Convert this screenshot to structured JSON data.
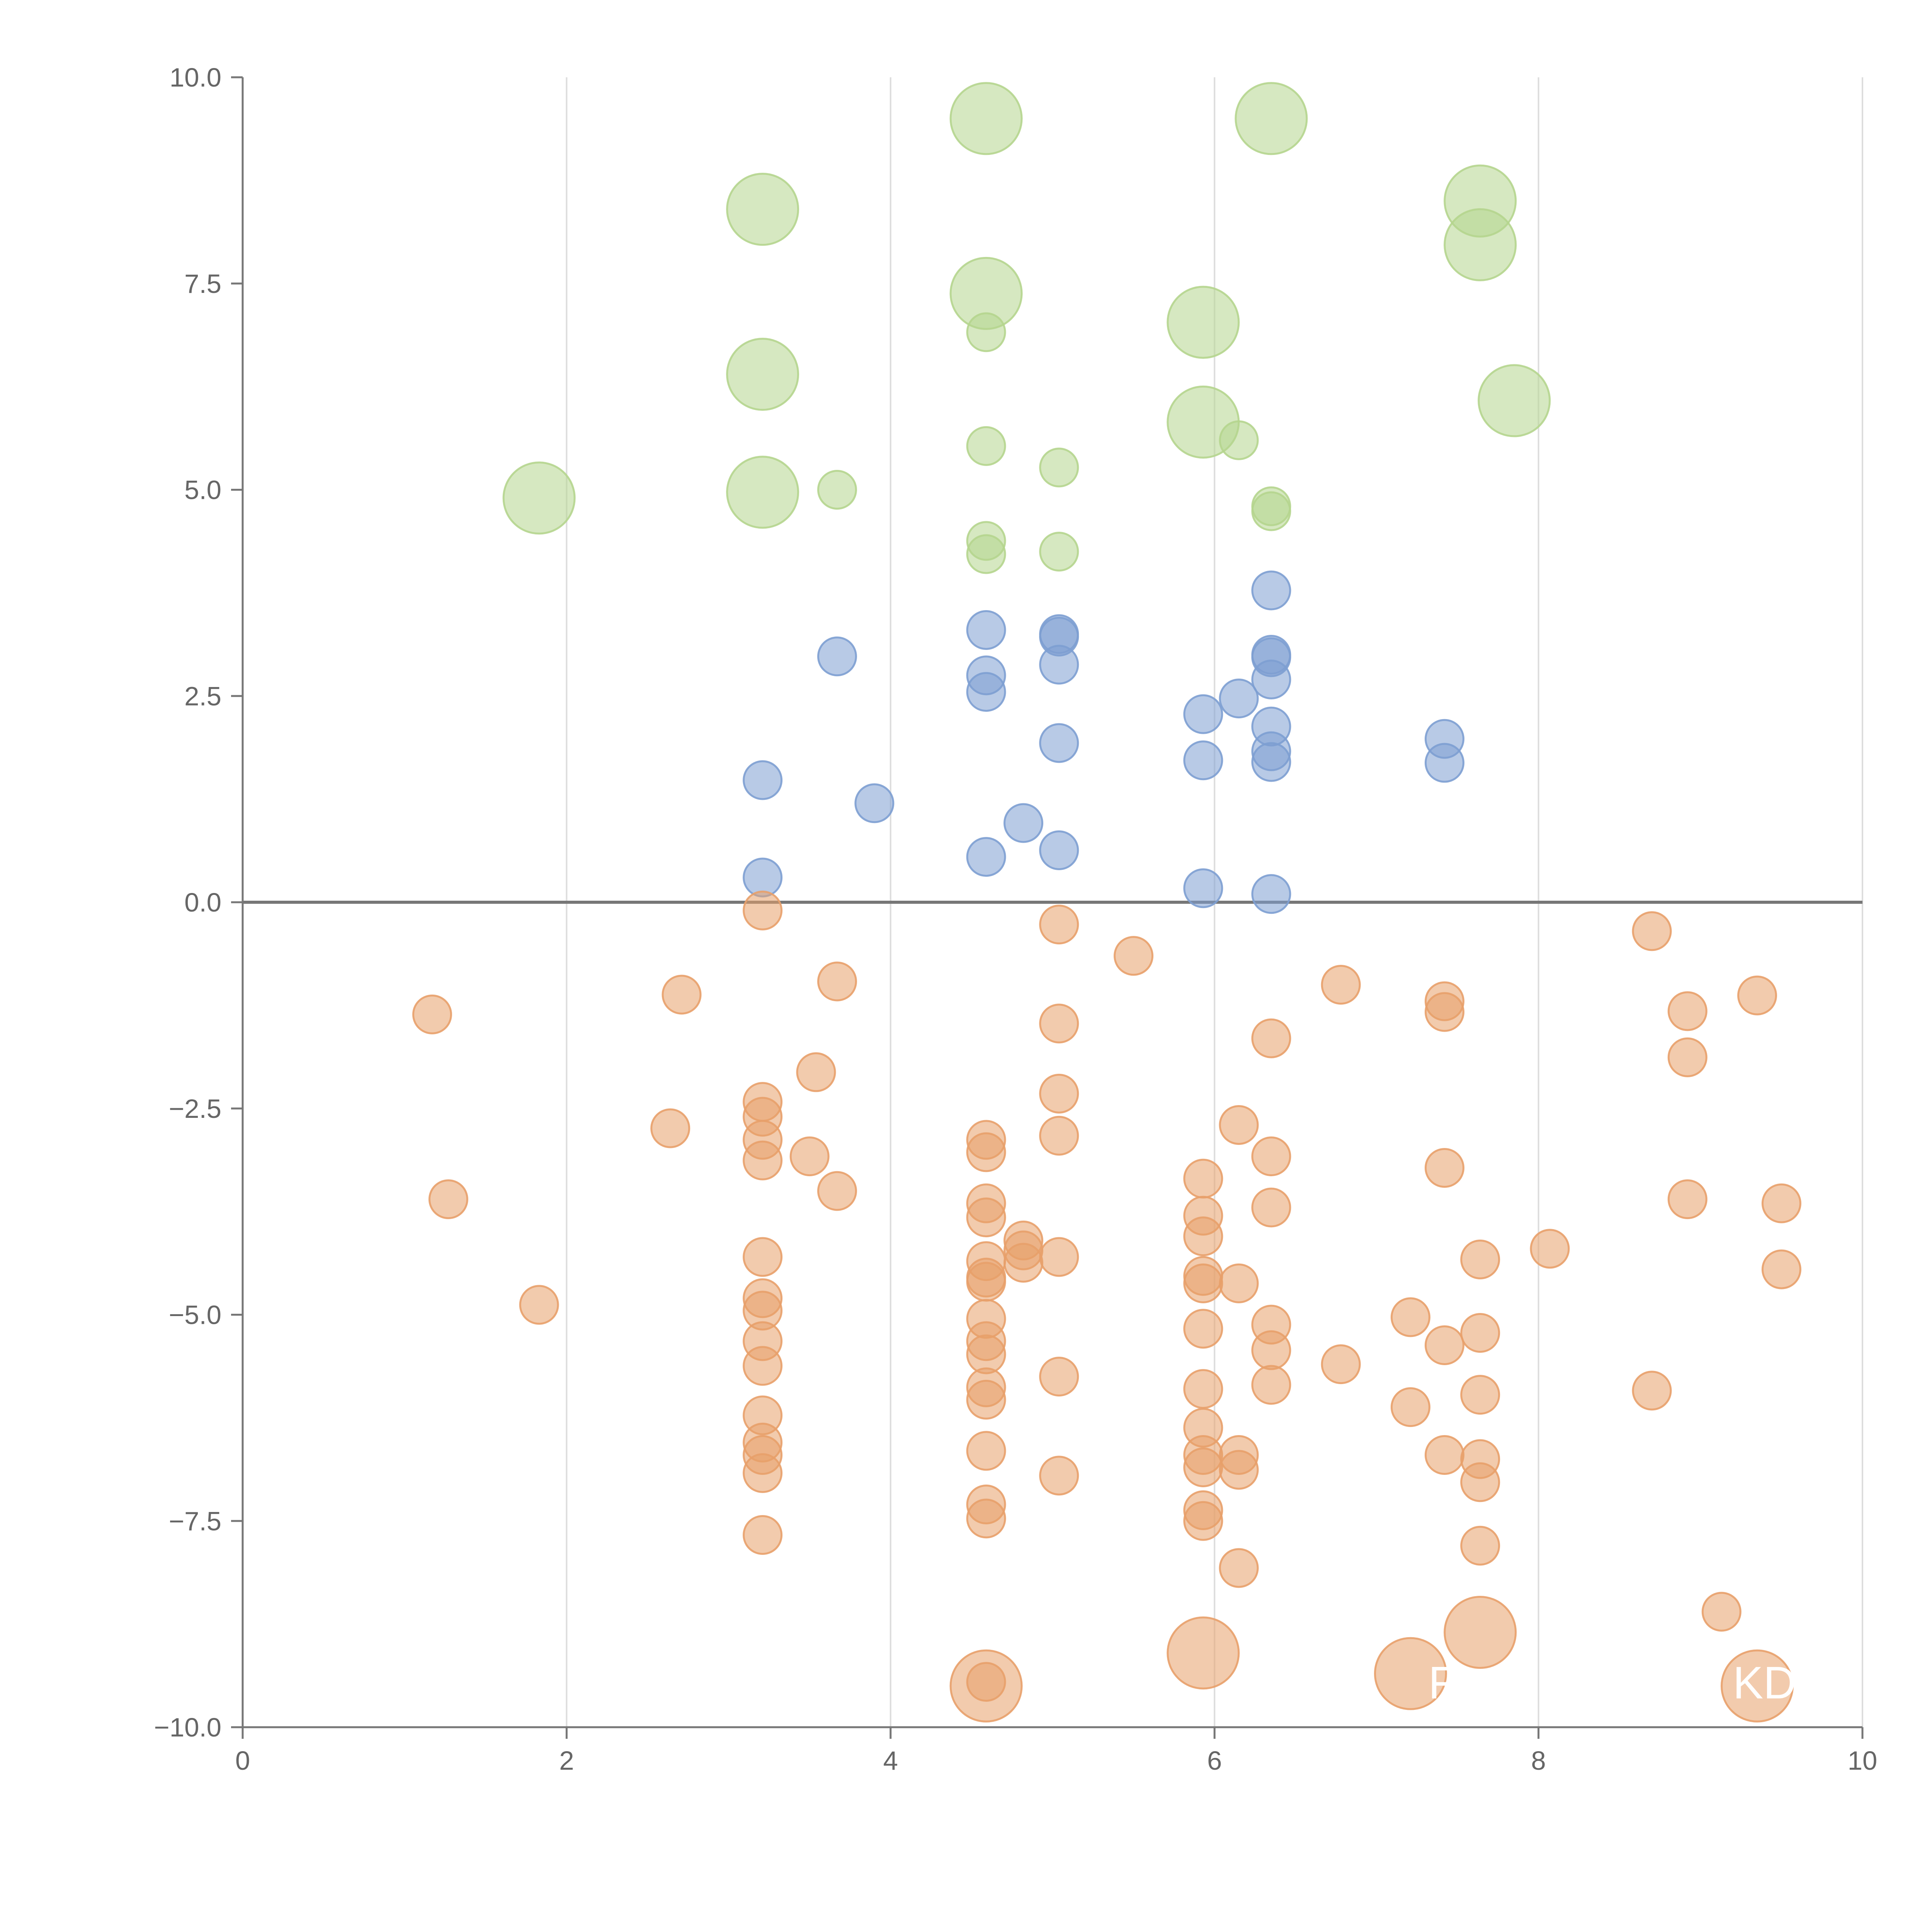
{
  "chart_data": {
    "type": "scatter",
    "title": "",
    "xlabel": "",
    "ylabel": "",
    "xlim": [
      0,
      10
    ],
    "ylim": [
      -10,
      10
    ],
    "x_ticks": [
      "0",
      "2",
      "4",
      "6",
      "8",
      "10"
    ],
    "y_ticks": [
      "10.0",
      "7.5",
      "5.0",
      "2.5",
      "0.0",
      "−2.5",
      "−5.0",
      "−7.5",
      "−10.0"
    ],
    "x_tick_values": [
      0,
      2,
      4,
      6,
      8,
      10
    ],
    "y_tick_values": [
      10,
      7.5,
      5,
      2.5,
      0,
      -2.5,
      -5,
      -7.5,
      -10
    ],
    "grid": "vertical",
    "zero_line": true,
    "legend": "none",
    "colors": {
      "large": "#b5d58e",
      "positive": "#7d9fd2",
      "negative": "#e8a06a"
    },
    "series": [
      {
        "color": "#b5d58e",
        "size": "large",
        "points": [
          [
            1.83,
            4.9
          ],
          [
            3.21,
            8.4
          ],
          [
            3.21,
            6.4
          ],
          [
            3.21,
            4.97
          ],
          [
            4.59,
            9.5
          ],
          [
            4.59,
            7.38
          ],
          [
            5.93,
            7.03
          ],
          [
            5.93,
            5.82
          ],
          [
            6.35,
            9.5
          ],
          [
            7.64,
            8.5
          ],
          [
            7.64,
            7.97
          ],
          [
            7.85,
            6.08
          ]
        ]
      },
      {
        "color": "#b5d58e",
        "size": "small",
        "points": [
          [
            3.67,
            5.0
          ],
          [
            4.59,
            6.91
          ],
          [
            4.59,
            5.53
          ],
          [
            4.59,
            4.38
          ],
          [
            4.59,
            4.22
          ],
          [
            5.04,
            5.27
          ],
          [
            5.04,
            4.25
          ],
          [
            6.15,
            5.6
          ],
          [
            6.35,
            4.8
          ],
          [
            6.35,
            4.74
          ]
        ]
      },
      {
        "color": "#7d9fd2",
        "size": "small",
        "points": [
          [
            3.21,
            1.48
          ],
          [
            3.21,
            0.3
          ],
          [
            3.67,
            2.98
          ],
          [
            3.9,
            1.2
          ],
          [
            4.59,
            3.3
          ],
          [
            4.59,
            2.75
          ],
          [
            4.59,
            2.55
          ],
          [
            4.59,
            0.55
          ],
          [
            4.82,
            0.96
          ],
          [
            5.04,
            3.25
          ],
          [
            5.04,
            3.22
          ],
          [
            5.04,
            2.88
          ],
          [
            5.04,
            1.93
          ],
          [
            5.04,
            0.63
          ],
          [
            5.93,
            2.28
          ],
          [
            5.93,
            1.72
          ],
          [
            5.93,
            0.17
          ],
          [
            6.15,
            2.47
          ],
          [
            6.35,
            3.78
          ],
          [
            6.35,
            3.0
          ],
          [
            6.35,
            2.97
          ],
          [
            6.35,
            2.7
          ],
          [
            6.35,
            2.13
          ],
          [
            6.35,
            1.83
          ],
          [
            6.35,
            1.7
          ],
          [
            6.35,
            0.1
          ],
          [
            7.42,
            1.98
          ],
          [
            7.42,
            1.69
          ]
        ]
      },
      {
        "color": "#e8a06a",
        "size": "large",
        "points": [
          [
            4.59,
            -9.5
          ],
          [
            5.93,
            -9.1
          ],
          [
            7.21,
            -9.35
          ],
          [
            7.64,
            -8.85
          ],
          [
            9.35,
            -9.5
          ]
        ]
      },
      {
        "color": "#e8a06a",
        "size": "small",
        "points": [
          [
            1.17,
            -1.36
          ],
          [
            1.27,
            -3.6
          ],
          [
            1.83,
            -4.88
          ],
          [
            2.64,
            -2.74
          ],
          [
            2.71,
            -1.12
          ],
          [
            3.21,
            -0.1
          ],
          [
            3.21,
            -2.42
          ],
          [
            3.21,
            -2.6
          ],
          [
            3.21,
            -2.88
          ],
          [
            3.21,
            -3.13
          ],
          [
            3.21,
            -4.3
          ],
          [
            3.21,
            -4.8
          ],
          [
            3.21,
            -4.95
          ],
          [
            3.21,
            -5.32
          ],
          [
            3.21,
            -5.62
          ],
          [
            3.21,
            -6.22
          ],
          [
            3.21,
            -6.55
          ],
          [
            3.21,
            -6.7
          ],
          [
            3.21,
            -6.92
          ],
          [
            3.21,
            -7.67
          ],
          [
            3.5,
            -3.08
          ],
          [
            3.54,
            -2.06
          ],
          [
            3.67,
            -0.96
          ],
          [
            3.67,
            -3.5
          ],
          [
            4.59,
            -2.88
          ],
          [
            4.59,
            -3.03
          ],
          [
            4.59,
            -3.65
          ],
          [
            4.59,
            -3.82
          ],
          [
            4.59,
            -4.35
          ],
          [
            4.59,
            -4.55
          ],
          [
            4.59,
            -4.6
          ],
          [
            4.59,
            -5.05
          ],
          [
            4.59,
            -5.32
          ],
          [
            4.59,
            -5.48
          ],
          [
            4.59,
            -5.88
          ],
          [
            4.59,
            -6.03
          ],
          [
            4.59,
            -6.65
          ],
          [
            4.59,
            -7.3
          ],
          [
            4.59,
            -7.47
          ],
          [
            4.59,
            -9.45
          ],
          [
            4.82,
            -4.1
          ],
          [
            4.82,
            -4.22
          ],
          [
            4.82,
            -4.37
          ],
          [
            5.04,
            -0.27
          ],
          [
            5.04,
            -1.47
          ],
          [
            5.04,
            -2.32
          ],
          [
            5.04,
            -2.83
          ],
          [
            5.04,
            -4.3
          ],
          [
            5.04,
            -5.75
          ],
          [
            5.04,
            -6.95
          ],
          [
            5.5,
            -0.65
          ],
          [
            5.93,
            -3.35
          ],
          [
            5.93,
            -3.8
          ],
          [
            5.93,
            -4.05
          ],
          [
            5.93,
            -4.53
          ],
          [
            5.93,
            -4.62
          ],
          [
            5.93,
            -5.17
          ],
          [
            5.93,
            -5.9
          ],
          [
            5.93,
            -6.37
          ],
          [
            5.93,
            -6.7
          ],
          [
            5.93,
            -6.85
          ],
          [
            5.93,
            -7.37
          ],
          [
            5.93,
            -7.5
          ],
          [
            6.15,
            -2.7
          ],
          [
            6.15,
            -4.62
          ],
          [
            6.15,
            -6.7
          ],
          [
            6.15,
            -6.88
          ],
          [
            6.15,
            -8.07
          ],
          [
            6.35,
            -1.65
          ],
          [
            6.35,
            -3.08
          ],
          [
            6.35,
            -3.7
          ],
          [
            6.35,
            -5.12
          ],
          [
            6.35,
            -5.43
          ],
          [
            6.35,
            -5.85
          ],
          [
            6.78,
            -1.0
          ],
          [
            6.78,
            -5.6
          ],
          [
            7.21,
            -5.03
          ],
          [
            7.21,
            -6.12
          ],
          [
            7.42,
            -1.2
          ],
          [
            7.42,
            -1.33
          ],
          [
            7.42,
            -3.22
          ],
          [
            7.42,
            -5.37
          ],
          [
            7.42,
            -6.7
          ],
          [
            7.64,
            -4.33
          ],
          [
            7.64,
            -5.22
          ],
          [
            7.64,
            -5.97
          ],
          [
            7.64,
            -6.75
          ],
          [
            7.64,
            -7.03
          ],
          [
            7.64,
            -7.8
          ],
          [
            8.07,
            -4.2
          ],
          [
            8.7,
            -0.35
          ],
          [
            8.7,
            -5.92
          ],
          [
            8.92,
            -1.32
          ],
          [
            8.92,
            -1.88
          ],
          [
            8.92,
            -3.6
          ],
          [
            9.13,
            -8.6
          ],
          [
            9.35,
            -1.13
          ],
          [
            9.5,
            -3.65
          ],
          [
            9.5,
            -4.45
          ]
        ]
      }
    ],
    "point_labels": [
      {
        "text": "F",
        "x": 7.32,
        "y": -9.65
      },
      {
        "text": "KD",
        "x": 9.2,
        "y": -9.65
      }
    ]
  }
}
